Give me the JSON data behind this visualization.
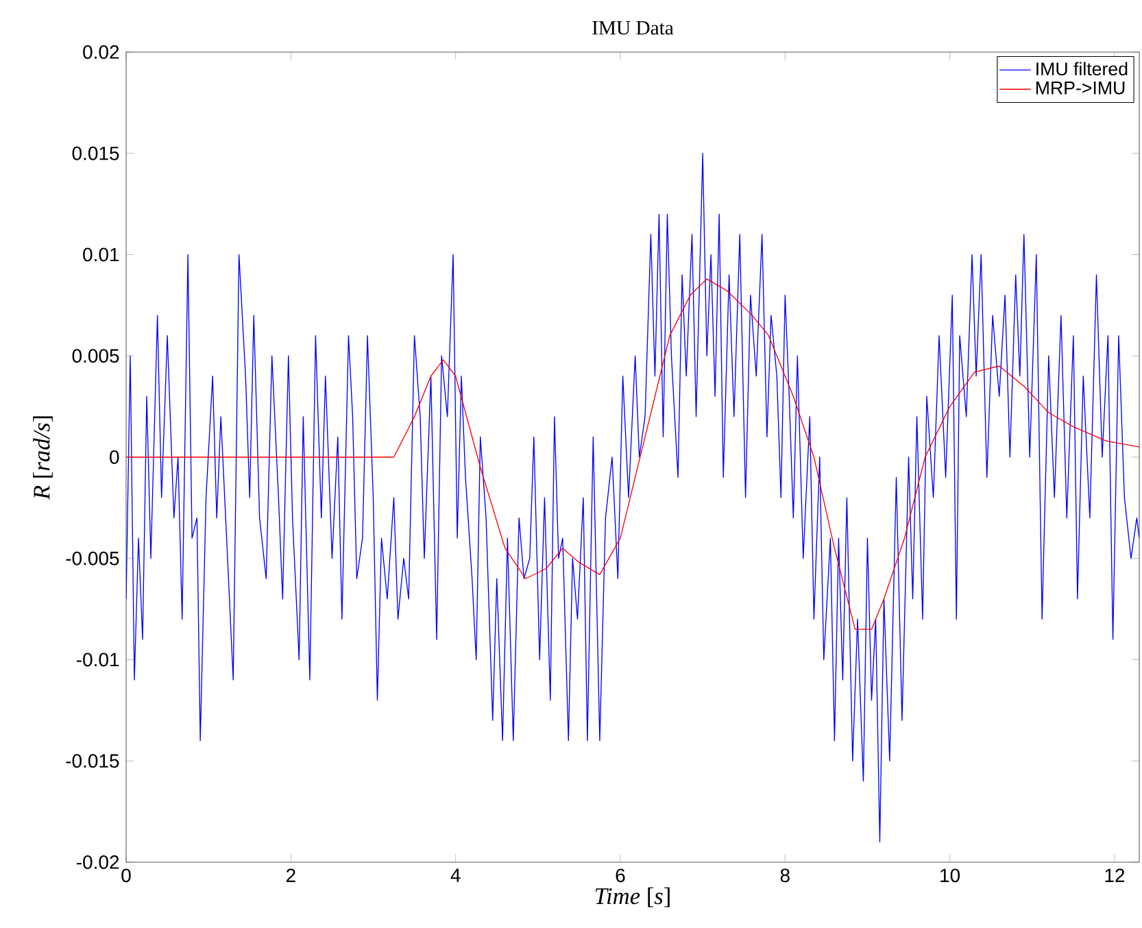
{
  "chart_data": {
    "type": "line",
    "title": "IMU Data",
    "xlabel": "*Time* [*s*]",
    "ylabel": "*R* [*rad/s*]",
    "xlim": [
      0,
      12.3
    ],
    "ylim": [
      -0.02,
      0.02
    ],
    "xticks": [
      0,
      2,
      4,
      6,
      8,
      10,
      12
    ],
    "yticks": [
      -0.02,
      -0.015,
      -0.01,
      -0.005,
      0,
      0.005,
      0.01,
      0.015,
      0.02
    ],
    "legend": "top right",
    "grid": false,
    "marker": "none",
    "line_style": "solid",
    "series": [
      {
        "name": "IMU filtered",
        "color": "#0000ff",
        "x": [
          0.0,
          0.05,
          0.1,
          0.15,
          0.2,
          0.25,
          0.3,
          0.38,
          0.43,
          0.5,
          0.58,
          0.63,
          0.68,
          0.75,
          0.8,
          0.86,
          0.9,
          0.97,
          1.05,
          1.1,
          1.15,
          1.22,
          1.3,
          1.37,
          1.45,
          1.5,
          1.55,
          1.62,
          1.7,
          1.77,
          1.85,
          1.9,
          1.97,
          2.02,
          2.1,
          2.15,
          2.23,
          2.3,
          2.37,
          2.42,
          2.5,
          2.57,
          2.62,
          2.7,
          2.75,
          2.8,
          2.87,
          2.93,
          3.0,
          3.05,
          3.1,
          3.17,
          3.25,
          3.3,
          3.37,
          3.43,
          3.5,
          3.57,
          3.62,
          3.7,
          3.77,
          3.83,
          3.9,
          3.97,
          4.02,
          4.07,
          4.12,
          4.2,
          4.25,
          4.3,
          4.37,
          4.45,
          4.5,
          4.57,
          4.63,
          4.7,
          4.77,
          4.83,
          4.9,
          4.95,
          5.02,
          5.08,
          5.15,
          5.2,
          5.25,
          5.3,
          5.37,
          5.42,
          5.48,
          5.55,
          5.6,
          5.67,
          5.75,
          5.82,
          5.9,
          5.97,
          6.03,
          6.1,
          6.18,
          6.23,
          6.3,
          6.37,
          6.42,
          6.47,
          6.52,
          6.57,
          6.62,
          6.7,
          6.75,
          6.8,
          6.87,
          6.92,
          7.0,
          7.05,
          7.1,
          7.15,
          7.2,
          7.25,
          7.32,
          7.38,
          7.45,
          7.52,
          7.58,
          7.65,
          7.72,
          7.78,
          7.83,
          7.9,
          7.95,
          8.0,
          8.05,
          8.1,
          8.15,
          8.22,
          8.3,
          8.35,
          8.42,
          8.47,
          8.55,
          8.6,
          8.65,
          8.7,
          8.75,
          8.82,
          8.88,
          8.95,
          9.0,
          9.05,
          9.1,
          9.15,
          9.2,
          9.27,
          9.35,
          9.42,
          9.5,
          9.55,
          9.6,
          9.67,
          9.72,
          9.8,
          9.87,
          9.95,
          10.03,
          10.08,
          10.12,
          10.2,
          10.27,
          10.32,
          10.38,
          10.45,
          10.52,
          10.6,
          10.67,
          10.73,
          10.8,
          10.85,
          10.9,
          10.97,
          11.05,
          11.12,
          11.2,
          11.27,
          11.35,
          11.42,
          11.5,
          11.55,
          11.62,
          11.7,
          11.78,
          11.85,
          11.92,
          11.98,
          12.05,
          12.12,
          12.2,
          12.27,
          12.3
        ],
        "values": [
          -0.007,
          0.005,
          -0.011,
          -0.004,
          -0.009,
          0.003,
          -0.005,
          0.007,
          -0.002,
          0.006,
          -0.003,
          0.0,
          -0.008,
          0.01,
          -0.004,
          -0.003,
          -0.014,
          -0.002,
          0.004,
          -0.003,
          0.002,
          -0.004,
          -0.011,
          0.01,
          0.004,
          -0.002,
          0.007,
          -0.003,
          -0.006,
          0.005,
          -0.002,
          -0.007,
          0.005,
          -0.003,
          -0.01,
          0.002,
          -0.011,
          0.006,
          -0.003,
          0.004,
          -0.005,
          0.001,
          -0.008,
          0.006,
          0.002,
          -0.006,
          -0.004,
          0.006,
          -0.002,
          -0.012,
          -0.004,
          -0.007,
          -0.002,
          -0.008,
          -0.005,
          -0.007,
          0.006,
          0.002,
          -0.005,
          0.004,
          -0.009,
          0.005,
          0.002,
          0.01,
          -0.004,
          0.004,
          -0.001,
          -0.006,
          -0.01,
          0.001,
          -0.003,
          -0.013,
          -0.006,
          -0.014,
          -0.004,
          -0.014,
          -0.003,
          -0.006,
          -0.005,
          0.001,
          -0.01,
          -0.002,
          -0.012,
          0.002,
          -0.005,
          -0.004,
          -0.014,
          -0.005,
          -0.008,
          -0.002,
          -0.014,
          0.001,
          -0.014,
          -0.003,
          0.0,
          -0.006,
          0.004,
          -0.002,
          0.005,
          0.0,
          0.002,
          0.011,
          0.004,
          0.012,
          0.001,
          0.012,
          0.005,
          -0.001,
          0.009,
          0.004,
          0.011,
          0.002,
          0.015,
          0.005,
          0.01,
          0.003,
          0.012,
          -0.001,
          0.009,
          0.002,
          0.011,
          -0.002,
          0.008,
          0.004,
          0.011,
          0.001,
          0.007,
          0.004,
          -0.002,
          0.008,
          0.003,
          -0.003,
          0.005,
          -0.005,
          0.002,
          -0.008,
          0.0,
          -0.01,
          -0.004,
          -0.014,
          -0.004,
          -0.011,
          -0.002,
          -0.015,
          -0.008,
          -0.016,
          -0.004,
          -0.012,
          -0.008,
          -0.019,
          -0.007,
          -0.015,
          -0.001,
          -0.013,
          0.0,
          -0.007,
          0.002,
          -0.008,
          0.003,
          -0.002,
          0.006,
          -0.001,
          0.008,
          -0.008,
          0.006,
          0.002,
          0.01,
          0.004,
          0.01,
          -0.001,
          0.007,
          0.003,
          0.008,
          0.0,
          0.009,
          0.004,
          0.011,
          0.0,
          0.01,
          -0.008,
          0.005,
          -0.002,
          0.007,
          -0.003,
          0.006,
          -0.007,
          0.004,
          -0.003,
          0.009,
          0.0,
          0.006,
          -0.009,
          0.006,
          -0.002,
          -0.005,
          -0.003,
          -0.004
        ]
      },
      {
        "name": "MRP->IMU",
        "color": "#ff0000",
        "x": [
          0,
          1,
          2,
          3,
          3.25,
          3.5,
          3.7,
          3.85,
          4.0,
          4.3,
          4.6,
          4.85,
          5.1,
          5.3,
          5.5,
          5.75,
          6.0,
          6.3,
          6.6,
          6.85,
          7.05,
          7.3,
          7.6,
          7.8,
          8.1,
          8.35,
          8.6,
          8.85,
          9.05,
          9.2,
          9.45,
          9.7,
          10.0,
          10.3,
          10.6,
          10.9,
          11.2,
          11.5,
          11.9,
          12.3
        ],
        "values": [
          0,
          0,
          0,
          0,
          0,
          0.002,
          0.004,
          0.0048,
          0.004,
          -0.0005,
          -0.0045,
          -0.006,
          -0.0055,
          -0.0045,
          -0.0052,
          -0.0058,
          -0.004,
          0.001,
          0.006,
          0.008,
          0.0088,
          0.0082,
          0.007,
          0.006,
          0.003,
          0,
          -0.0045,
          -0.0085,
          -0.0085,
          -0.007,
          -0.004,
          0,
          0.0025,
          0.0042,
          0.0045,
          0.0035,
          0.0022,
          0.0015,
          0.0008,
          0.0005
        ]
      }
    ]
  }
}
